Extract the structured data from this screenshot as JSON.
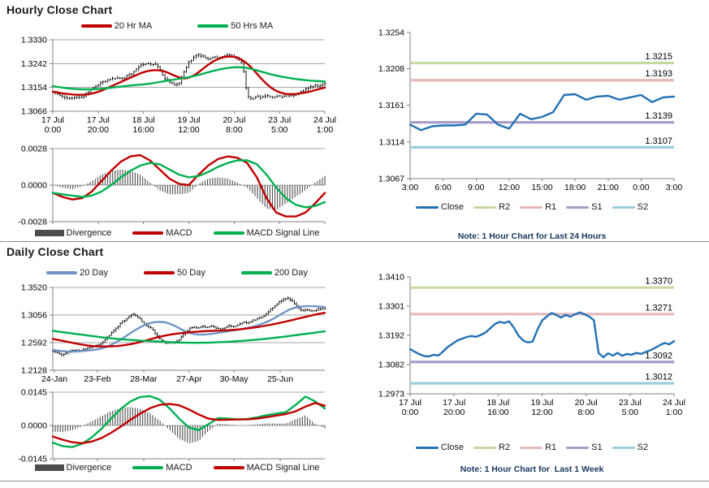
{
  "sections": {
    "hourly": {
      "title": "Hourly Close Chart"
    },
    "daily": {
      "title": "Daily Close Chart"
    }
  },
  "colors": {
    "grid": "#a6a6a6",
    "axis": "#808080",
    "candle": "#000000",
    "divergence_bar": "#4d4d4d",
    "note_text": "#17375D"
  },
  "chart_data": [
    {
      "id": "hourly-price",
      "type": "candlestick+line",
      "title": "Hourly Close Chart",
      "ylim": [
        1.3066,
        1.333
      ],
      "yticks": [
        1.333,
        1.3242,
        1.3154,
        1.3066
      ],
      "grid": [
        1.333,
        1.3242,
        1.3154
      ],
      "ydecimals": 4,
      "xticks": [
        {
          "d": "17 Jul",
          "t": "0:00"
        },
        {
          "d": "17 Jul",
          "t": "20:00"
        },
        {
          "d": "18 Jul",
          "t": "16:00"
        },
        {
          "d": "19 Jul",
          "t": "12:00"
        },
        {
          "d": "20 Jul",
          "t": "8:00"
        },
        {
          "d": "23 Jul",
          "t": "5:00"
        },
        {
          "d": "24 Jul",
          "t": "1:00"
        }
      ],
      "series": [
        {
          "name": "Close",
          "type": "candles",
          "color": "#000000",
          "values": [
            1.314,
            1.313,
            1.3121,
            1.3114,
            1.3113,
            1.3119,
            1.3116,
            1.3131,
            1.3148,
            1.316,
            1.3172,
            1.3179,
            1.3185,
            1.3189,
            1.3186,
            1.3193,
            1.3202,
            1.3218,
            1.3234,
            1.3242,
            1.3238,
            1.3244,
            1.322,
            1.319,
            1.3172,
            1.3165,
            1.3168,
            1.3212,
            1.3247,
            1.3262,
            1.3275,
            1.3268,
            1.3258,
            1.3268,
            1.3261,
            1.327,
            1.3277,
            1.327,
            1.3262,
            1.3248,
            1.3125,
            1.311,
            1.3124,
            1.3116,
            1.3126,
            1.3115,
            1.3122,
            1.3119,
            1.3126,
            1.3122,
            1.313,
            1.3136,
            1.3145,
            1.3155,
            1.3163,
            1.3158,
            1.317
          ]
        },
        {
          "name": "20 Hr MA",
          "type": "line",
          "color": "#C00000",
          "values": [
            1.3138,
            1.3135,
            1.3132,
            1.313,
            1.3128,
            1.3127,
            1.3127,
            1.3128,
            1.3131,
            1.3136,
            1.3142,
            1.315,
            1.3158,
            1.3166,
            1.3174,
            1.3182,
            1.319,
            1.3198,
            1.3206,
            1.3212,
            1.3216,
            1.3218,
            1.3217,
            1.3213,
            1.3206,
            1.3198,
            1.3191,
            1.3187,
            1.319,
            1.3198,
            1.321,
            1.3224,
            1.3238,
            1.325,
            1.3259,
            1.3265,
            1.3268,
            1.3268,
            1.3264,
            1.3255,
            1.3242,
            1.3225,
            1.3205,
            1.3185,
            1.3167,
            1.3152,
            1.3141,
            1.3134,
            1.313,
            1.3129,
            1.313,
            1.3132,
            1.3135,
            1.3139,
            1.3144,
            1.3149,
            1.3153
          ]
        },
        {
          "name": "50 Hrs MA",
          "type": "line",
          "color": "#00B050",
          "values": [
            1.3159,
            1.3156,
            1.3153,
            1.3151,
            1.3149,
            1.3148,
            1.3147,
            1.3147,
            1.3147,
            1.3148,
            1.3149,
            1.3151,
            1.3153,
            1.3155,
            1.3157,
            1.3159,
            1.3161,
            1.3163,
            1.3164,
            1.3166,
            1.3168,
            1.3171,
            1.3174,
            1.3177,
            1.318,
            1.3183,
            1.3186,
            1.3189,
            1.3192,
            1.3196,
            1.32,
            1.3205,
            1.321,
            1.3215,
            1.3219,
            1.3223,
            1.3226,
            1.3228,
            1.3229,
            1.3228,
            1.3226,
            1.3222,
            1.3217,
            1.3212,
            1.3207,
            1.3202,
            1.3198,
            1.3194,
            1.3191,
            1.3188,
            1.3185,
            1.3183,
            1.3181,
            1.3179,
            1.3178,
            1.3177,
            1.3176
          ]
        }
      ]
    },
    {
      "id": "hourly-macd",
      "type": "line+histogram",
      "ylim": [
        -0.0028,
        0.0028
      ],
      "yticks": [
        0.0028,
        0,
        -0.0028
      ],
      "grid": [
        0.0028,
        0
      ],
      "ydecimals": 4,
      "xtickpos": [
        0,
        0.1667,
        0.3333,
        0.5,
        0.6667,
        0.8333,
        1
      ],
      "series": [
        {
          "name": "Divergence",
          "type": "histogram",
          "color": "#4d4d4d",
          "derived": "MACD minus MACD Signal Line"
        },
        {
          "name": "MACD",
          "type": "line",
          "color": "#C00000",
          "values": [
            -0.0006,
            -0.0009,
            -0.0011,
            -0.001,
            -0.0005,
            0.0003,
            0.0011,
            0.0018,
            0.0022,
            0.0023,
            0.0019,
            0.0012,
            0.0005,
            0.0001,
            0.0,
            0.0008,
            0.0015,
            0.002,
            0.0022,
            0.0021,
            0.0017,
            0.0006,
            -0.001,
            -0.0021,
            -0.0024,
            -0.0024,
            -0.0021,
            -0.0014,
            -0.0006
          ]
        },
        {
          "name": "MACD Signal Line",
          "type": "line",
          "color": "#00B050",
          "values": [
            -0.0006,
            -0.0007,
            -0.0008,
            -0.0009,
            -0.0008,
            -0.0005,
            0.0,
            0.0006,
            0.0011,
            0.0015,
            0.0017,
            0.0016,
            0.0012,
            0.0008,
            0.0006,
            0.0007,
            0.001,
            0.0014,
            0.0017,
            0.0019,
            0.0019,
            0.0016,
            0.0008,
            -0.0002,
            -0.001,
            -0.0015,
            -0.0017,
            -0.0016,
            -0.0013
          ]
        }
      ]
    },
    {
      "id": "hourly-pivot",
      "type": "line",
      "note": "Note: 1 Hour Chart for Last 24 Hours",
      "ylim": [
        1.3067,
        1.3254
      ],
      "yticks": [
        1.3254,
        1.3208,
        1.3161,
        1.3114,
        1.3067
      ],
      "grid": [],
      "ydecimals": 4,
      "xticks": [
        "3:00",
        "6:00",
        "9:00",
        "12:00",
        "15:00",
        "18:00",
        "21:00",
        "0:00",
        "3:00"
      ],
      "series": [
        {
          "name": "Close",
          "type": "line",
          "color": "#2371B5",
          "values": [
            1.3136,
            1.3129,
            1.3134,
            1.3135,
            1.3135,
            1.3136,
            1.315,
            1.3149,
            1.3136,
            1.3131,
            1.315,
            1.3143,
            1.3146,
            1.3152,
            1.3174,
            1.3175,
            1.3168,
            1.3172,
            1.3173,
            1.3168,
            1.3171,
            1.3174,
            1.3165,
            1.3171,
            1.3172
          ]
        }
      ],
      "levels": [
        {
          "name": "R2",
          "value": 1.3215,
          "color": "#C6D9A0"
        },
        {
          "name": "R1",
          "value": 1.3193,
          "color": "#E6B9B8"
        },
        {
          "name": "S1",
          "value": 1.3139,
          "color": "#A69CC8"
        },
        {
          "name": "S2",
          "value": 1.3107,
          "color": "#9CCDDC"
        }
      ]
    },
    {
      "id": "daily-price",
      "type": "candlestick+line",
      "title": "Daily Close Chart",
      "ylim": [
        1.2128,
        1.352
      ],
      "yticks": [
        1.352,
        1.3056,
        1.2592,
        1.2128
      ],
      "grid": [
        1.352,
        1.3056,
        1.2592
      ],
      "ydecimals": 4,
      "xticks": [
        "24-Jan",
        "23-Feb",
        "28-Mar",
        "27-Apr",
        "30-May",
        "25-Jun"
      ],
      "xtickpos": [
        0.006,
        0.164,
        0.334,
        0.501,
        0.666,
        0.836
      ],
      "series": [
        {
          "name": "Close",
          "type": "candles",
          "color": "#000000",
          "values": [
            1.2455,
            1.2425,
            1.2385,
            1.242,
            1.2455,
            1.2465,
            1.245,
            1.248,
            1.2505,
            1.253,
            1.2545,
            1.26,
            1.268,
            1.276,
            1.284,
            1.292,
            1.298,
            1.304,
            1.307,
            1.3,
            1.292,
            1.286,
            1.282,
            1.27,
            1.262,
            1.259,
            1.26,
            1.2595,
            1.265,
            1.274,
            1.282,
            1.286,
            1.284,
            1.287,
            1.285,
            1.288,
            1.284,
            1.282,
            1.285,
            1.288,
            1.286,
            1.29,
            1.294,
            1.292,
            1.296,
            1.299,
            1.302,
            1.307,
            1.315,
            1.322,
            1.328,
            1.332,
            1.334,
            1.328,
            1.318,
            1.313,
            1.315,
            1.312,
            1.314,
            1.3155,
            1.3165
          ]
        },
        {
          "name": "20 Day",
          "type": "line",
          "color": "#7094C4",
          "values": [
            1.247,
            1.246,
            1.245,
            1.2443,
            1.244,
            1.2442,
            1.2448,
            1.2455,
            1.2462,
            1.247,
            1.2482,
            1.25,
            1.2525,
            1.256,
            1.26,
            1.2645,
            1.2695,
            1.2745,
            1.2795,
            1.284,
            1.288,
            1.291,
            1.293,
            1.294,
            1.294,
            1.293,
            1.2905,
            1.287,
            1.283,
            1.279,
            1.276,
            1.274,
            1.273,
            1.2728,
            1.2732,
            1.274,
            1.275,
            1.2762,
            1.2775,
            1.2788,
            1.28,
            1.2812,
            1.2825,
            1.284,
            1.2858,
            1.288,
            1.2905,
            1.2935,
            1.297,
            1.301,
            1.3055,
            1.31,
            1.314,
            1.317,
            1.319,
            1.32,
            1.3205,
            1.3205,
            1.3202,
            1.3196,
            1.319
          ]
        },
        {
          "name": "50 Day",
          "type": "line",
          "color": "#C00000",
          "values": [
            1.2655,
            1.264,
            1.2625,
            1.261,
            1.2595,
            1.258,
            1.2565,
            1.2552,
            1.2542,
            1.2535,
            1.253,
            1.2528,
            1.2528,
            1.253,
            1.2535,
            1.2542,
            1.2552,
            1.2565,
            1.258,
            1.2598,
            1.2618,
            1.264,
            1.266,
            1.268,
            1.2698,
            1.2714,
            1.2728,
            1.274,
            1.275,
            1.2758,
            1.2765,
            1.2772,
            1.2778,
            1.2783,
            1.2787,
            1.279,
            1.2793,
            1.2795,
            1.2798,
            1.2802,
            1.2808,
            1.2815,
            1.2823,
            1.2832,
            1.2842,
            1.2853,
            1.2865,
            1.2878,
            1.2892,
            1.2907,
            1.2923,
            1.294,
            1.2958,
            1.2976,
            1.2994,
            1.3012,
            1.303,
            1.3048,
            1.3065,
            1.308,
            1.3094
          ]
        },
        {
          "name": "200 Day",
          "type": "line",
          "color": "#00B050",
          "values": [
            1.279,
            1.278,
            1.277,
            1.276,
            1.275,
            1.274,
            1.273,
            1.272,
            1.271,
            1.27,
            1.269,
            1.268,
            1.2672,
            1.2664,
            1.2657,
            1.265,
            1.2644,
            1.2638,
            1.2633,
            1.2628,
            1.2624,
            1.262,
            1.2616,
            1.2612,
            1.2608,
            1.2604,
            1.26,
            1.2597,
            1.2594,
            1.2592,
            1.259,
            1.2589,
            1.2589,
            1.259,
            1.2592,
            1.2594,
            1.2597,
            1.26,
            1.2604,
            1.2608,
            1.2613,
            1.2618,
            1.2624,
            1.263,
            1.2636,
            1.2643,
            1.265,
            1.2658,
            1.2666,
            1.2674,
            1.2683,
            1.2692,
            1.2702,
            1.2712,
            1.2722,
            1.2732,
            1.2742,
            1.2752,
            1.2762,
            1.2772,
            1.2782
          ]
        }
      ]
    },
    {
      "id": "daily-macd",
      "type": "line+histogram",
      "ylim": [
        -0.0145,
        0.0145
      ],
      "yticks": [
        0.0145,
        0,
        -0.0145
      ],
      "grid": [
        0.0145,
        0
      ],
      "ydecimals": 4,
      "xtickpos": [
        0.006,
        0.164,
        0.334,
        0.501,
        0.666,
        0.836
      ],
      "series": [
        {
          "name": "Divergence",
          "type": "histogram",
          "color": "#4d4d4d",
          "derived": "MACD minus MACD Signal Line"
        },
        {
          "name": "MACD",
          "type": "line",
          "color": "#00B050",
          "values": [
            -0.0075,
            -0.009,
            -0.0094,
            -0.008,
            -0.0052,
            -0.0015,
            0.003,
            0.0072,
            0.0105,
            0.0124,
            0.0128,
            0.0112,
            0.0075,
            0.003,
            -0.0008,
            -0.002,
            0.0005,
            0.0032,
            0.003,
            0.0026,
            0.0028,
            0.0035,
            0.0045,
            0.0052,
            0.0058,
            0.009,
            0.0126,
            0.0105,
            0.0074
          ]
        },
        {
          "name": "MACD Signal Line",
          "type": "line",
          "color": "#C00000",
          "values": [
            -0.0048,
            -0.0062,
            -0.0073,
            -0.0077,
            -0.007,
            -0.0055,
            -0.0032,
            -0.0005,
            0.0025,
            0.0052,
            0.0075,
            0.009,
            0.0094,
            0.0088,
            0.007,
            0.0048,
            0.003,
            0.0024,
            0.0025,
            0.0026,
            0.0027,
            0.003,
            0.0036,
            0.0043,
            0.005,
            0.0062,
            0.0082,
            0.0098,
            0.0086
          ]
        }
      ]
    },
    {
      "id": "weekly-pivot",
      "type": "line",
      "note": "Note: 1 Hour Chart for  Last 1 Week",
      "ylim": [
        1.2973,
        1.341
      ],
      "yticks": [
        1.341,
        1.3301,
        1.3192,
        1.3082,
        1.2973
      ],
      "grid": [],
      "ydecimals": 4,
      "xticks": [
        {
          "d": "17 Jul",
          "t": "0:00"
        },
        {
          "d": "17 Jul",
          "t": "20:00"
        },
        {
          "d": "18 Jul",
          "t": "16:00"
        },
        {
          "d": "19 Jul",
          "t": "12:00"
        },
        {
          "d": "20 Jul",
          "t": "8:00"
        },
        {
          "d": "23 Jul",
          "t": "5:00"
        },
        {
          "d": "24 Jul",
          "t": "1:00"
        }
      ],
      "series": [
        {
          "name": "Close",
          "type": "line",
          "color": "#2371B5",
          "values": [
            1.314,
            1.313,
            1.3121,
            1.3114,
            1.3113,
            1.3119,
            1.3116,
            1.3131,
            1.3148,
            1.316,
            1.3172,
            1.3179,
            1.3185,
            1.3189,
            1.3186,
            1.3193,
            1.3202,
            1.3218,
            1.3234,
            1.3242,
            1.3238,
            1.3244,
            1.322,
            1.319,
            1.3172,
            1.3165,
            1.3168,
            1.3212,
            1.3247,
            1.3262,
            1.3275,
            1.3268,
            1.3258,
            1.3268,
            1.3261,
            1.327,
            1.3277,
            1.327,
            1.3262,
            1.3248,
            1.3125,
            1.311,
            1.3124,
            1.3116,
            1.3126,
            1.3115,
            1.3122,
            1.3119,
            1.3126,
            1.3122,
            1.313,
            1.3136,
            1.3145,
            1.3155,
            1.3163,
            1.3158,
            1.317
          ]
        }
      ],
      "levels": [
        {
          "name": "R2",
          "value": 1.337,
          "color": "#C6D9A0"
        },
        {
          "name": "R1",
          "value": 1.3271,
          "color": "#E6B9B8"
        },
        {
          "name": "S1",
          "value": 1.3092,
          "color": "#A69CC8"
        },
        {
          "name": "S2",
          "value": 1.3012,
          "color": "#9CCDDC"
        }
      ]
    }
  ]
}
